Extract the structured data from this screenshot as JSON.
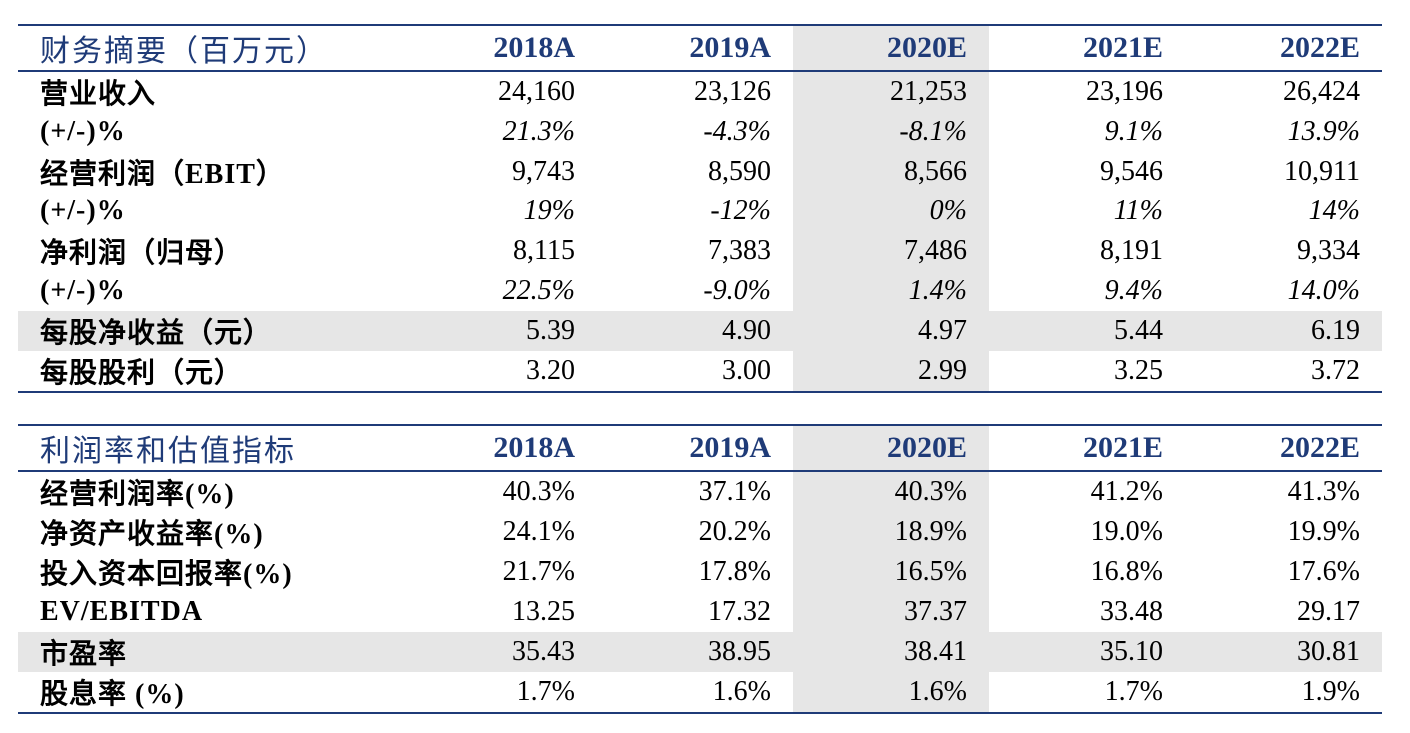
{
  "colors": {
    "header_text": "#1f3b78",
    "rule": "#1f3b78",
    "shade": "#e6e6e6"
  },
  "financial_summary": {
    "title": "财务摘要（百万元）",
    "years": [
      "2018A",
      "2019A",
      "2020E",
      "2021E",
      "2022E"
    ],
    "rows": [
      {
        "label": "营业收入",
        "values": [
          "24,160",
          "23,126",
          "21,253",
          "23,196",
          "26,424"
        ]
      },
      {
        "label": "(+/-)%",
        "values": [
          "21.3%",
          "-4.3%",
          "-8.1%",
          "9.1%",
          "13.9%"
        ]
      },
      {
        "label": "经营利润（EBIT）",
        "values": [
          "9,743",
          "8,590",
          "8,566",
          "9,546",
          "10,911"
        ]
      },
      {
        "label": "(+/-)%",
        "values": [
          "19%",
          "-12%",
          "0%",
          "11%",
          "14%"
        ]
      },
      {
        "label": "净利润（归母）",
        "values": [
          "8,115",
          "7,383",
          "7,486",
          "8,191",
          "9,334"
        ]
      },
      {
        "label": "(+/-)%",
        "values": [
          "22.5%",
          "-9.0%",
          "1.4%",
          "9.4%",
          "14.0%"
        ]
      },
      {
        "label": "每股净收益（元）",
        "values": [
          "5.39",
          "4.90",
          "4.97",
          "5.44",
          "6.19"
        ]
      },
      {
        "label": "每股股利（元）",
        "values": [
          "3.20",
          "3.00",
          "2.99",
          "3.25",
          "3.72"
        ]
      }
    ]
  },
  "margin_valuation": {
    "title": "利润率和估值指标",
    "years": [
      "2018A",
      "2019A",
      "2020E",
      "2021E",
      "2022E"
    ],
    "rows": [
      {
        "label": "经营利润率(%)",
        "values": [
          "40.3%",
          "37.1%",
          "40.3%",
          "41.2%",
          "41.3%"
        ]
      },
      {
        "label": "净资产收益率(%)",
        "values": [
          "24.1%",
          "20.2%",
          "18.9%",
          "19.0%",
          "19.9%"
        ]
      },
      {
        "label": "投入资本回报率(%)",
        "values": [
          "21.7%",
          "17.8%",
          "16.5%",
          "16.8%",
          "17.6%"
        ]
      },
      {
        "label": "EV/EBITDA",
        "values": [
          "13.25",
          "17.32",
          "37.37",
          "33.48",
          "29.17"
        ]
      },
      {
        "label": "市盈率",
        "values": [
          "35.43",
          "38.95",
          "38.41",
          "35.10",
          "30.81"
        ]
      },
      {
        "label": "股息率 (%)",
        "values": [
          "1.7%",
          "1.6%",
          "1.6%",
          "1.7%",
          "1.9%"
        ]
      }
    ]
  }
}
